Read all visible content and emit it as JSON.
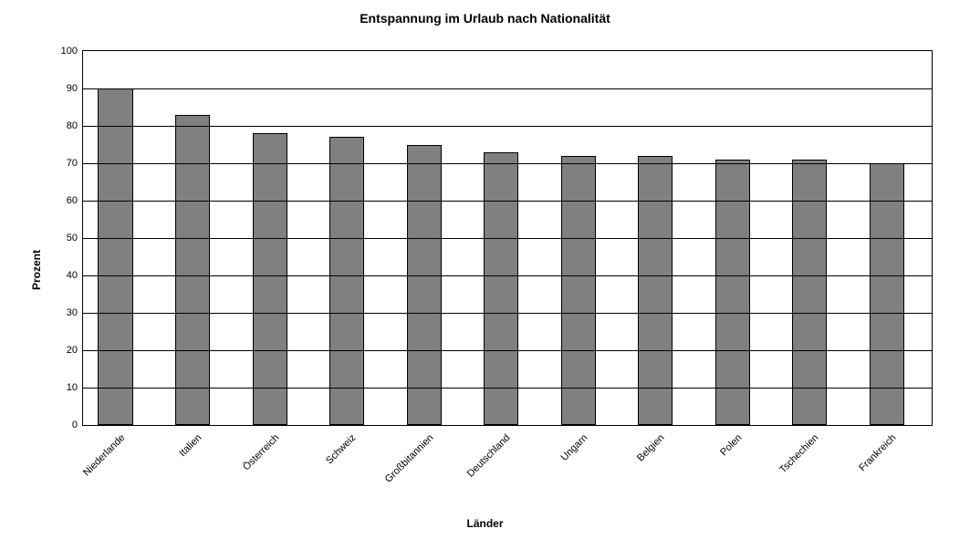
{
  "chart": {
    "type": "bar",
    "title": "Entspannung im Urlaub nach Nationalität",
    "title_fontsize": 14,
    "ylabel": "Prozent",
    "xlabel": "Länder",
    "label_fontsize": 12,
    "background_color": "#ffffff",
    "plot_border_color": "#000000",
    "grid_color": "#000000",
    "bar_color": "#808080",
    "bar_border_color": "#000000",
    "bar_width_ratio": 0.45,
    "ylim": [
      0,
      100
    ],
    "ytick_step": 10,
    "tick_fontsize": 11,
    "categories": [
      "Niederlande",
      "Italien",
      "Österreich",
      "Schweiz",
      "Großbitannien",
      "Deutschland",
      "Ungarn",
      "Belgien",
      "Polen",
      "Tschechien",
      "Frankreich"
    ],
    "values": [
      90,
      83,
      78,
      77,
      75,
      73,
      72,
      72,
      71,
      71,
      70
    ]
  }
}
